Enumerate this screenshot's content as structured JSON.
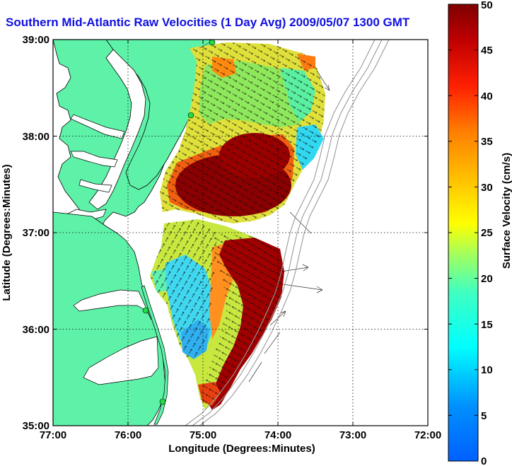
{
  "figure": {
    "title": "Southern Mid-Atlantic Raw Velocities (1 Day Avg) 2009/05/07 1300 GMT"
  },
  "axes": {
    "x_label": "Longitude (Degrees:Minutes)",
    "y_label": "Latitude (Degrees:Minutes)",
    "x_ticks": [
      "77:00",
      "76:00",
      "75:00",
      "74:00",
      "73:00",
      "72:00"
    ],
    "y_ticks": [
      "39:00",
      "38:00",
      "37:00",
      "36:00",
      "35:00"
    ],
    "x_range": [
      -77,
      -72
    ],
    "y_range": [
      35,
      39
    ],
    "grid": "dotted"
  },
  "colorbar": {
    "label": "Surface Velocity (cm/s)",
    "ticks": [
      "0",
      "5",
      "10",
      "15",
      "20",
      "25",
      "30",
      "35",
      "40",
      "45",
      "50"
    ],
    "range": [
      0,
      50
    ],
    "colormap": "jet"
  },
  "colors": {
    "land": "#5ef2a9",
    "water": "#ffffff",
    "title": "#1010e0",
    "station": "#22dd44"
  }
}
